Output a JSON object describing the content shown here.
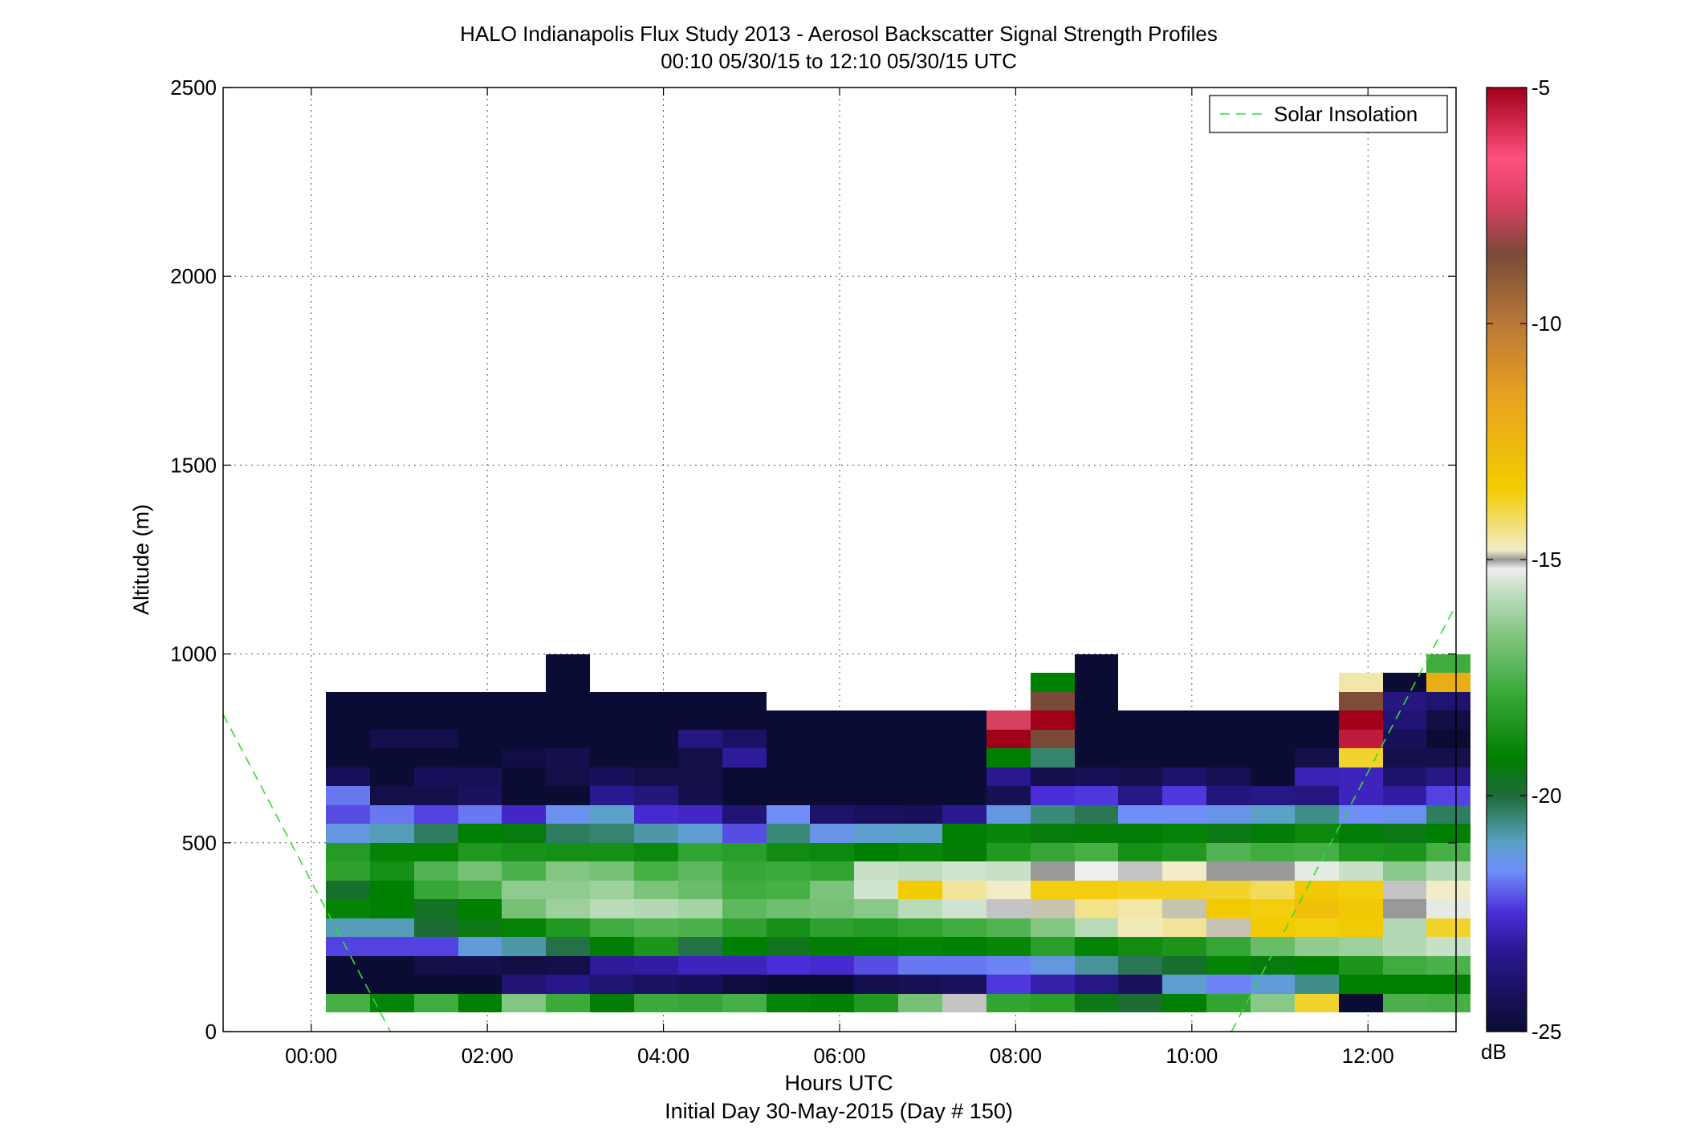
{
  "chart_data": {
    "type": "heatmap",
    "title": "HALO Indianapolis Flux Study 2013 - Aerosol Backscatter Signal Strength Profiles",
    "subtitle": "00:10 05/30/15 to 12:10 05/30/15  UTC",
    "xlabel": "Hours UTC",
    "xlabel2": "Initial Day 30-May-2015 (Day # 150)",
    "ylabel": "Altitude (m)",
    "x_range_hours": [
      -1.0,
      13.0
    ],
    "ylim": [
      0,
      2500
    ],
    "x_ticks": [
      {
        "value": 0,
        "label": "00:00"
      },
      {
        "value": 2,
        "label": "02:00"
      },
      {
        "value": 4,
        "label": "04:00"
      },
      {
        "value": 6,
        "label": "06:00"
      },
      {
        "value": 8,
        "label": "08:00"
      },
      {
        "value": 10,
        "label": "10:00"
      },
      {
        "value": 12,
        "label": "12:00"
      }
    ],
    "y_ticks": [
      0,
      500,
      1000,
      1500,
      2000,
      2500
    ],
    "grid": true,
    "legend": {
      "label": "Solar Insolation",
      "position": "top-right",
      "color": "#33dd33",
      "style": "dashed"
    },
    "colorbar": {
      "label": "dB",
      "min": -25,
      "max": -5,
      "ticks": [
        -5,
        -10,
        -15,
        -20,
        -25
      ],
      "stops": [
        {
          "value": -25,
          "color": "#0b0c33"
        },
        {
          "value": -23.3,
          "color": "#2a1890"
        },
        {
          "value": -22.5,
          "color": "#4a2cd8"
        },
        {
          "value": -21.6,
          "color": "#6f8ef8"
        },
        {
          "value": -21.0,
          "color": "#5aa0c8"
        },
        {
          "value": -20.5,
          "color": "#3a8a7a"
        },
        {
          "value": -20.0,
          "color": "#1f6a3a"
        },
        {
          "value": -19.2,
          "color": "#008000"
        },
        {
          "value": -17.8,
          "color": "#3aaa3a"
        },
        {
          "value": -16.5,
          "color": "#88c888"
        },
        {
          "value": -15.6,
          "color": "#c8e0c8"
        },
        {
          "value": -15.2,
          "color": "#eeeeee"
        },
        {
          "value": -15.0,
          "color": "#999999"
        },
        {
          "value": -14.8,
          "color": "#f2ecc8"
        },
        {
          "value": -13.5,
          "color": "#f2cc00"
        },
        {
          "value": -11.5,
          "color": "#e8a020"
        },
        {
          "value": -10.0,
          "color": "#b87838"
        },
        {
          "value": -8.5,
          "color": "#7a4a38"
        },
        {
          "value": -7.5,
          "color": "#d84060"
        },
        {
          "value": -6.5,
          "color": "#ff5080"
        },
        {
          "value": -5.0,
          "color": "#a00018"
        }
      ]
    },
    "grid_spec": {
      "t_start_hours": 0.1667,
      "t_step_hours": 0.5,
      "alt_start_m": 50,
      "alt_step_m": 50,
      "value_unit": "dB"
    },
    "columns": [
      [
        -17.6,
        -25,
        -25,
        -22.3,
        -20.9,
        -19.1,
        -19.8,
        -18.1,
        -18.3,
        -21.3,
        -22.2,
        -21.8,
        -24.3,
        -25,
        -25,
        -25,
        -25
      ],
      [
        -19.1,
        -25,
        -25,
        -22.3,
        -20.9,
        -19.2,
        -19.2,
        -18.7,
        -19.1,
        -20.9,
        -21.8,
        -24.6,
        -25,
        -25,
        -24.5,
        -25,
        -25
      ],
      [
        -17.7,
        -25,
        -24.6,
        -22.3,
        -19.9,
        -19.7,
        -17.9,
        -17.4,
        -19.1,
        -20.3,
        -22.3,
        -24.6,
        -24.3,
        -25,
        -24.5,
        -25,
        -25
      ],
      [
        -19.2,
        -25,
        -24.5,
        -21.2,
        -19.5,
        -19.2,
        -17.6,
        -16.8,
        -18.4,
        -19.2,
        -21.8,
        -24.2,
        -24.4,
        -25,
        -25,
        -25,
        -25
      ],
      [
        -16.6,
        -23.8,
        -24.7,
        -20.8,
        -19.1,
        -16.8,
        -16.4,
        -17.5,
        -18.6,
        -19.4,
        -22.7,
        -25,
        -25,
        -24.7,
        -25,
        -25,
        -25
      ],
      [
        -17.8,
        -23.4,
        -24.6,
        -20.1,
        -18.4,
        -16.2,
        -16.4,
        -16.6,
        -18.7,
        -20.3,
        -21.5,
        -25,
        -24.6,
        -24.5,
        -25,
        -25,
        -25,
        -25,
        -25
      ],
      [
        -19.3,
        -23.9,
        -23.2,
        -19.3,
        -17.7,
        -15.8,
        -16.2,
        -16.8,
        -18.7,
        -20.4,
        -21.0,
        -23.3,
        -24.3,
        -25,
        -25,
        -25,
        -25
      ],
      [
        -17.8,
        -24.1,
        -23.1,
        -18.5,
        -17.4,
        -15.9,
        -16.7,
        -17.6,
        -18.9,
        -20.8,
        -22.6,
        -23.7,
        -24.6,
        -25,
        -25,
        -25,
        -25
      ],
      [
        -17.9,
        -24.3,
        -22.8,
        -20.1,
        -17.5,
        -16.1,
        -17.0,
        -17.2,
        -18.0,
        -21.1,
        -22.7,
        -24.5,
        -24.6,
        -24.6,
        -23.6,
        -25,
        -25
      ],
      [
        -17.6,
        -24.8,
        -22.8,
        -19.2,
        -18.1,
        -17.2,
        -17.7,
        -17.9,
        -18.2,
        -22.2,
        -23.8,
        -25,
        -25,
        -23.2,
        -24.1,
        -25,
        -25
      ],
      [
        -19.1,
        -25,
        -22.5,
        -19.6,
        -18.7,
        -16.9,
        -17.6,
        -17.8,
        -18.8,
        -20.5,
        -21.6,
        -25,
        -25,
        -25,
        -25,
        -25
      ],
      [
        -19.2,
        -25,
        -22.6,
        -19.3,
        -18.1,
        -16.8,
        -16.7,
        -18.0,
        -18.9,
        -21.4,
        -24.0,
        -25,
        -25,
        -25,
        -25,
        -25
      ],
      [
        -18.4,
        -24.5,
        -22.2,
        -19.2,
        -18.3,
        -16.5,
        -15.5,
        -15.6,
        -19.2,
        -21.1,
        -24.2,
        -25,
        -25,
        -25,
        -25,
        -25
      ],
      [
        -16.8,
        -24.4,
        -21.8,
        -19.1,
        -18.0,
        -15.8,
        -13.5,
        -15.7,
        -19.0,
        -21.0,
        -24.3,
        -25,
        -25,
        -25,
        -25,
        -25
      ],
      [
        -15.1,
        -24.2,
        -21.8,
        -19.2,
        -17.7,
        -15.5,
        -14.5,
        -15.5,
        -19.3,
        -19.2,
        -23.3,
        -25,
        -25,
        -25,
        -25,
        -25
      ],
      [
        -18.0,
        -22.4,
        -21.7,
        -19.0,
        -17.4,
        -15.1,
        -14.8,
        -15.6,
        -18.4,
        -19.0,
        -21.3,
        -24.4,
        -23.3,
        -19.2,
        -5.0,
        -7.5
      ],
      [
        -18.2,
        -23.0,
        -21.3,
        -18.2,
        -16.6,
        -14.9,
        -13.6,
        -15.0,
        -17.9,
        -19.4,
        -20.5,
        -22.5,
        -24.5,
        -20.4,
        -8.5,
        -5.0,
        -8.5,
        -19.2
      ],
      [
        -19.5,
        -23.5,
        -20.7,
        -19.1,
        -15.8,
        -14.4,
        -13.6,
        -15.2,
        -17.6,
        -19.3,
        -20.2,
        -22.4,
        -24.4,
        -25,
        -25,
        -25,
        -25,
        -25,
        -25
      ],
      [
        -19.9,
        -24.2,
        -20.2,
        -18.8,
        -14.7,
        -14.6,
        -13.7,
        -15.1,
        -18.7,
        -19.3,
        -21.6,
        -23.5,
        -24.5,
        -25,
        -25,
        -25
      ],
      [
        -19.2,
        -21.1,
        -19.8,
        -18.5,
        -14.5,
        -14.9,
        -13.7,
        -14.8,
        -18.4,
        -19.1,
        -21.6,
        -22.4,
        -24.0,
        -25,
        -25,
        -25
      ],
      [
        -18.0,
        -21.7,
        -19.1,
        -17.9,
        -14.9,
        -13.4,
        -13.8,
        -15.0,
        -17.4,
        -19.5,
        -21.4,
        -23.7,
        -24.4,
        -25,
        -25,
        -25
      ],
      [
        -16.5,
        -21.2,
        -19.4,
        -17.0,
        -13.5,
        -13.6,
        -14.1,
        -15.0,
        -17.7,
        -19.3,
        -21.0,
        -23.5,
        -25,
        -25,
        -25,
        -25
      ],
      [
        -13.8,
        -20.6,
        -19.2,
        -16.4,
        -13.6,
        -12.9,
        -13.3,
        -15.3,
        -17.6,
        -18.9,
        -20.6,
        -23.6,
        -22.9,
        -24.6,
        -25,
        -25
      ],
      [
        -25,
        -19.2,
        -18.5,
        -16.2,
        -13.4,
        -13.3,
        -13.6,
        -15.6,
        -18.4,
        -19.3,
        -21.6,
        -22.8,
        -22.8,
        -13.8,
        -5.5,
        -5.0,
        -8.6,
        -14.6
      ],
      [
        -17.5,
        -19.2,
        -17.7,
        -15.9,
        -15.9,
        -15.0,
        -15.1,
        -16.5,
        -18.5,
        -19.5,
        -21.5,
        -23.1,
        -24.0,
        -24.5,
        -24.3,
        -23.8,
        -23.6,
        -25
      ],
      [
        -17.6,
        -19.2,
        -17.5,
        -15.6,
        -13.8,
        -15.3,
        -14.8,
        -15.9,
        -17.6,
        -19.2,
        -20.3,
        -22.3,
        -23.5,
        -24.5,
        -25,
        -24.7,
        -23.9,
        -12.1,
        -17.7
      ]
    ]
  }
}
